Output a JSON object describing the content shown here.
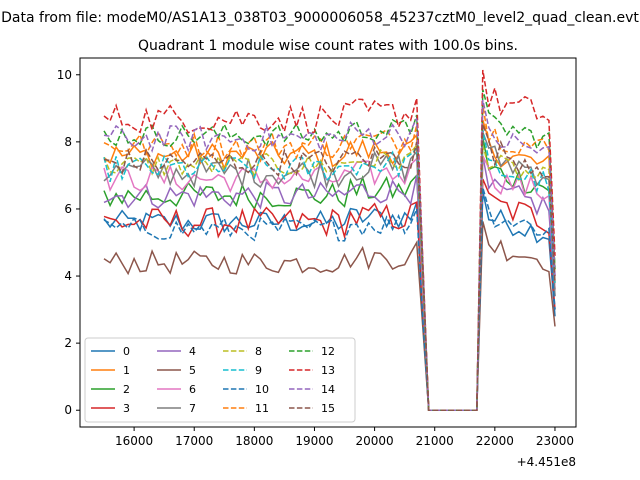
{
  "chart_data": {
    "type": "line",
    "suptitle": "Data from file: modeM0/AS1A13_038T03_9000006058_45237cztM0_level2_quad_clean.evt",
    "title": "Quadrant 1 module wise count rates with 100.0s bins.",
    "xlabel": "",
    "ylabel": "",
    "x_offset_label": "+4.451e8",
    "x_offset": 445100000,
    "xlim": [
      15100,
      23350
    ],
    "ylim": [
      -0.5,
      10.5
    ],
    "xticks": [
      16000,
      17000,
      18000,
      19000,
      20000,
      21000,
      22000,
      23000
    ],
    "yticks": [
      0,
      2,
      4,
      6,
      8,
      10
    ],
    "x": {
      "start": 15500,
      "step": 100,
      "count": 76
    },
    "gap": {
      "start_index": 54,
      "end_index": 62,
      "value": 0
    },
    "edges": {
      "mid_index": 52,
      "drop_index": 53,
      "rise_index": 63,
      "end_index": 75
    },
    "grid": false,
    "legend": {
      "placement": "bottom-left",
      "columns": 4
    },
    "series": [
      {
        "name": "0",
        "color": "#1f77b4",
        "style": "solid",
        "level": 5.6,
        "amp": 0.35,
        "after": 5.8,
        "end": 2.8
      },
      {
        "name": "1",
        "color": "#ff7f0e",
        "style": "solid",
        "level": 7.6,
        "amp": 0.4,
        "after": 7.8,
        "end": 3.8
      },
      {
        "name": "2",
        "color": "#2ca02c",
        "style": "solid",
        "level": 6.4,
        "amp": 0.4,
        "after": 7.2,
        "end": 3.6
      },
      {
        "name": "3",
        "color": "#d62728",
        "style": "solid",
        "level": 5.6,
        "amp": 0.45,
        "after": 6.2,
        "end": 3.0
      },
      {
        "name": "4",
        "color": "#9467bd",
        "style": "solid",
        "level": 6.4,
        "amp": 0.4,
        "after": 6.6,
        "end": 3.4
      },
      {
        "name": "5",
        "color": "#8c564b",
        "style": "solid",
        "level": 4.4,
        "amp": 0.35,
        "after": 5.0,
        "end": 2.5
      },
      {
        "name": "6",
        "color": "#e377c2",
        "style": "solid",
        "level": 6.9,
        "amp": 0.4,
        "after": 7.0,
        "end": 3.6
      },
      {
        "name": "7",
        "color": "#7f7f7f",
        "style": "solid",
        "level": 7.1,
        "amp": 0.45,
        "after": 7.6,
        "end": 3.4
      },
      {
        "name": "8",
        "color": "#bcbd22",
        "style": "dashed",
        "level": 7.3,
        "amp": 0.35,
        "after": 7.4,
        "end": 4.2
      },
      {
        "name": "9",
        "color": "#17becf",
        "style": "dashed",
        "level": 7.2,
        "amp": 0.4,
        "after": 7.3,
        "end": 3.8
      },
      {
        "name": "10",
        "color": "#1f77b4",
        "style": "dashed",
        "level": 5.4,
        "amp": 0.35,
        "after": 5.9,
        "end": 3.0
      },
      {
        "name": "11",
        "color": "#ff7f0e",
        "style": "dashed",
        "level": 7.9,
        "amp": 0.4,
        "after": 8.3,
        "end": 4.0
      },
      {
        "name": "12",
        "color": "#2ca02c",
        "style": "dashed",
        "level": 8.2,
        "amp": 0.35,
        "after": 8.6,
        "end": 4.2
      },
      {
        "name": "13",
        "color": "#d62728",
        "style": "dashed",
        "level": 8.7,
        "amp": 0.45,
        "after": 9.3,
        "end": 4.6
      },
      {
        "name": "14",
        "color": "#9467bd",
        "style": "dashed",
        "level": 8.1,
        "amp": 0.4,
        "after": 8.2,
        "end": 4.0
      },
      {
        "name": "15",
        "color": "#8c564b",
        "style": "dashed",
        "level": 7.4,
        "amp": 0.4,
        "after": 7.8,
        "end": 3.8
      }
    ]
  }
}
